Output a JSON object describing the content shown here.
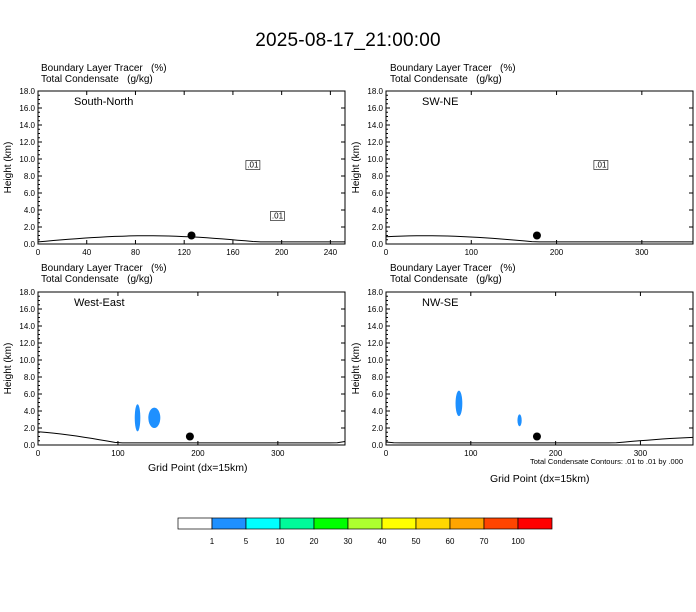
{
  "title": "2025-08-17_21:00:00",
  "panel_header": {
    "line1": "Boundary Layer Tracer   (%)",
    "line2": "Total Condensate   (g/kg)"
  },
  "y_axis_label": "Height (km)",
  "x_axis_label": "Grid Point (dx=15km)",
  "contour_note": "Total Condensate Contours: .01 to .01 by .000",
  "colorbar": {
    "colors": [
      "#ffffff",
      "#1e90ff",
      "#00ffff",
      "#00fa9a",
      "#00ff00",
      "#adff2f",
      "#ffff00",
      "#ffd700",
      "#ffa500",
      "#ff4500",
      "#ff0000"
    ],
    "labels": [
      "1",
      "5",
      "10",
      "20",
      "30",
      "40",
      "50",
      "60",
      "70",
      "100"
    ]
  },
  "chart_data": [
    {
      "type": "heatmap",
      "panel": "South-North",
      "xlim": [
        0,
        252
      ],
      "ylim": [
        0,
        18
      ],
      "xticks": [
        "0",
        "40",
        "80",
        "120",
        "160",
        "200",
        "240"
      ],
      "yticks": [
        "0.0",
        "2.0",
        "4.0",
        "6.0",
        "8.0",
        "10.0",
        "12.0",
        "14.0",
        "16.0",
        "18.0"
      ],
      "contour_labels": [
        ".01",
        ".01"
      ],
      "point_marker_x": 126,
      "bl_tracer_filled": []
    },
    {
      "type": "heatmap",
      "panel": "SW-NE",
      "xlim": [
        0,
        360
      ],
      "ylim": [
        0,
        18
      ],
      "xticks": [
        "0",
        "100",
        "200",
        "300"
      ],
      "yticks": [
        "0.0",
        "2.0",
        "4.0",
        "6.0",
        "8.0",
        "10.0",
        "12.0",
        "14.0",
        "16.0",
        "18.0"
      ],
      "contour_labels": [
        ".01"
      ],
      "point_marker_x": 177,
      "bl_tracer_filled": []
    },
    {
      "type": "heatmap",
      "panel": "West-East",
      "xlim": [
        0,
        384
      ],
      "ylim": [
        0,
        18
      ],
      "xticks": [
        "0",
        "100",
        "200",
        "300"
      ],
      "yticks": [
        "0.0",
        "2.0",
        "4.0",
        "6.0",
        "8.0",
        "10.0",
        "12.0",
        "14.0",
        "16.0",
        "18.0"
      ],
      "contour_labels": [],
      "point_marker_x": 190,
      "bl_tracer_filled": [
        {
          "x_range": [
            121,
            128
          ],
          "z_range": [
            1.6,
            4.8
          ],
          "category": "1-5"
        },
        {
          "x_range": [
            138,
            153
          ],
          "z_range": [
            2.0,
            4.4
          ],
          "category": "1-5"
        }
      ]
    },
    {
      "type": "heatmap",
      "panel": "NW-SE",
      "xlim": [
        0,
        362
      ],
      "ylim": [
        0,
        18
      ],
      "xticks": [
        "0",
        "100",
        "200",
        "300"
      ],
      "yticks": [
        "0.0",
        "2.0",
        "4.0",
        "6.0",
        "8.0",
        "10.0",
        "12.0",
        "14.0",
        "16.0",
        "18.0"
      ],
      "contour_labels": [],
      "point_marker_x": 178,
      "bl_tracer_filled": [
        {
          "x_range": [
            82,
            90
          ],
          "z_range": [
            3.4,
            6.4
          ],
          "category": "1-5"
        },
        {
          "x_range": [
            155,
            160
          ],
          "z_range": [
            2.2,
            3.6
          ],
          "category": "1-5"
        }
      ]
    }
  ]
}
